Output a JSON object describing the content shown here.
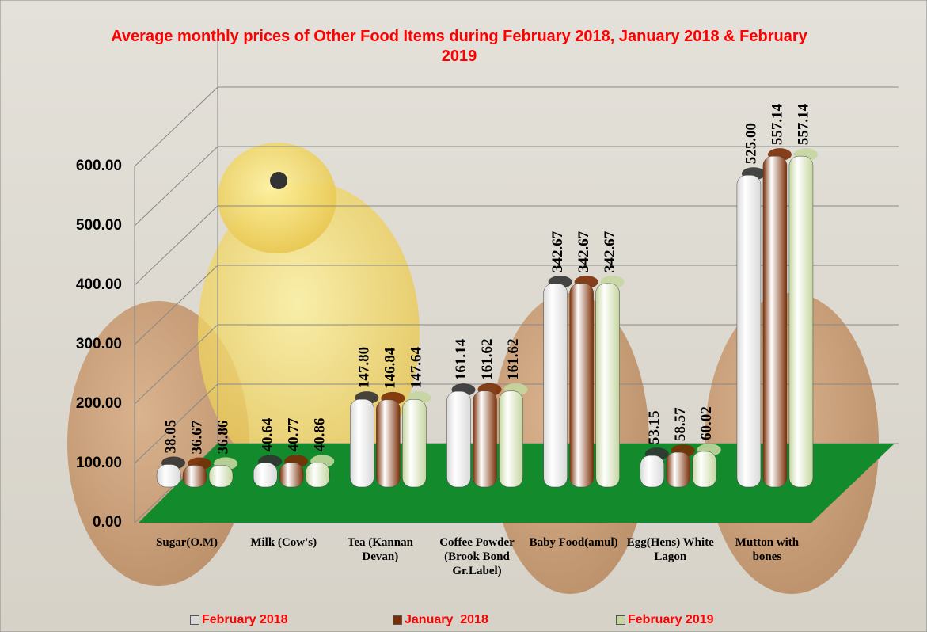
{
  "chart_data": {
    "type": "bar3d",
    "title": "Average monthly prices of Other Food Items during February 2018, January 2018 & February 2019",
    "categories": [
      "Sugar(O.M)",
      "Milk (Cow's)",
      "Tea (Kannan Devan)",
      "Coffee Powder (Brook Bond Gr.Label)",
      "Baby Food(amul)",
      "Egg(Hens) White Lagon",
      "Mutton with bones"
    ],
    "series": [
      {
        "name": "February 2018",
        "color": "#d9d9d9",
        "values": [
          38.05,
          40.64,
          147.8,
          161.14,
          342.67,
          53.15,
          525.0
        ],
        "value_labels": [
          "38.05",
          "40.64",
          "147.80",
          "161.14",
          "342.67",
          "53.15",
          "525.00"
        ]
      },
      {
        "name": "January  2018",
        "color": "#7a2e05",
        "values": [
          36.67,
          40.77,
          146.84,
          161.62,
          342.67,
          58.57,
          557.14
        ],
        "value_labels": [
          "36.67",
          "40.77",
          "146.84",
          "161.62",
          "342.67",
          "58.57",
          "557.14"
        ]
      },
      {
        "name": "February 2019",
        "color": "#c5d6a0",
        "values": [
          36.86,
          40.86,
          147.64,
          161.62,
          342.67,
          60.02,
          557.14
        ],
        "value_labels": [
          "36.86",
          "40.86",
          "147.64",
          "161.62",
          "342.67",
          "60.02",
          "557.14"
        ]
      }
    ],
    "ylim": [
      0,
      700
    ],
    "yticks": [
      {
        "value": 0,
        "label": "0.00"
      },
      {
        "value": 100,
        "label": "100.00"
      },
      {
        "value": 200,
        "label": "200.00"
      },
      {
        "value": 300,
        "label": "300.00"
      },
      {
        "value": 400,
        "label": "400.00"
      },
      {
        "value": 500,
        "label": "500.00"
      },
      {
        "value": 600,
        "label": "600.00"
      }
    ],
    "grid": true,
    "floor_color": "#138a2c",
    "legend": "bottom"
  }
}
